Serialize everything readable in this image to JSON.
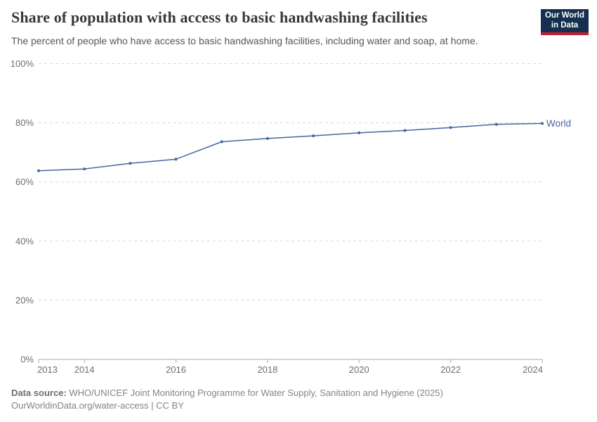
{
  "logo": {
    "line1": "Our World",
    "line2": "in Data",
    "background_color": "#15304f",
    "stripe_color": "#be2332"
  },
  "chart_data": {
    "type": "line",
    "title": "Share of population with access to basic handwashing facilities",
    "subtitle": "The percent of people who have access to basic handwashing facilities, including water and soap, at home.",
    "x": [
      2013,
      2014,
      2015,
      2016,
      2017,
      2018,
      2019,
      2020,
      2021,
      2022,
      2023,
      2024
    ],
    "series": [
      {
        "name": "World",
        "color": "#4665a1",
        "values": [
          63.8,
          64.4,
          66.3,
          67.7,
          73.6,
          74.7,
          75.6,
          76.6,
          77.4,
          78.4,
          79.5,
          79.8
        ]
      }
    ],
    "xlabel": "",
    "ylabel": "",
    "ylim": [
      0,
      100
    ],
    "y_ticks": [
      {
        "value": 0,
        "label": "0%"
      },
      {
        "value": 20,
        "label": "20%"
      },
      {
        "value": 40,
        "label": "40%"
      },
      {
        "value": 60,
        "label": "60%"
      },
      {
        "value": 80,
        "label": "80%"
      },
      {
        "value": 100,
        "label": "100%"
      }
    ],
    "x_ticks": [
      {
        "year": 2013,
        "label": "2013"
      },
      {
        "year": 2014,
        "label": "2014"
      },
      {
        "year": 2016,
        "label": "2016"
      },
      {
        "year": 2018,
        "label": "2018"
      },
      {
        "year": 2020,
        "label": "2020"
      },
      {
        "year": 2022,
        "label": "2022"
      },
      {
        "year": 2024,
        "label": "2024"
      }
    ],
    "grid": "horizontal-dashed",
    "legend_position": "end-of-line",
    "colors": {
      "grid": "#d9d9d9",
      "axis": "#a8a8a8",
      "tick_text": "#6e6e73"
    }
  },
  "footer": {
    "source_label": "Data source:",
    "source_text": "WHO/UNICEF Joint Monitoring Programme for Water Supply, Sanitation and Hygiene (2025)",
    "link_line": "OurWorldinData.org/water-access | CC BY"
  }
}
